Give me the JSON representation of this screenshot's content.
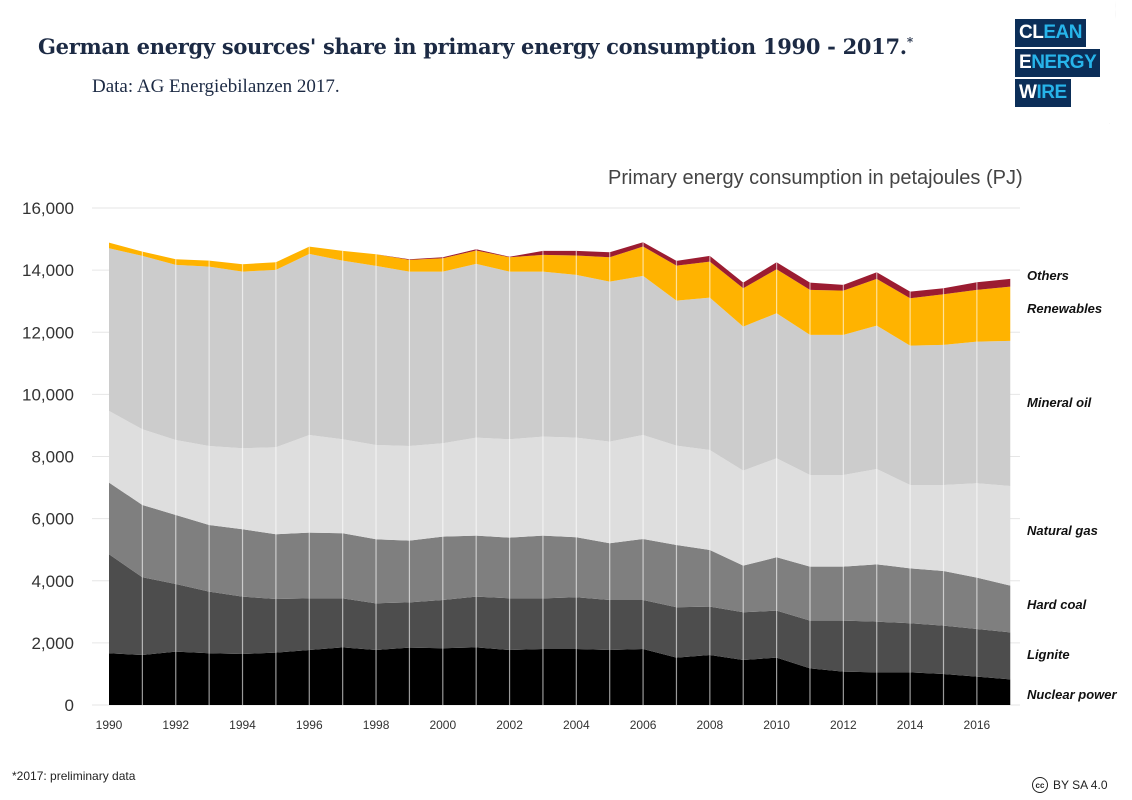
{
  "header": {
    "title": "German energy sources' share in primary energy consumption 1990 - 2017.",
    "title_mark": "*",
    "subtitle": "Data: AG Energiebilanzen 2017."
  },
  "logo": {
    "line1_a": "CL",
    "line1_b": "EAN",
    "line2_a": "E",
    "line2_b": "NERGY",
    "line3_a": "W",
    "line3_b": "IRE"
  },
  "footer": {
    "footnote": "*2017: preliminary data",
    "license": "BY SA 4.0",
    "license_icon_text": "cc"
  },
  "chart_data": {
    "type": "area",
    "stacked": true,
    "title": "Primary energy consumption in petajoules (PJ)",
    "xlabel": "",
    "ylabel": "",
    "ylim": [
      0,
      16000
    ],
    "yticks": [
      "0",
      "2,000",
      "4,000",
      "6,000",
      "8,000",
      "10,000",
      "12,000",
      "14,000",
      "16,000"
    ],
    "ytick_values": [
      0,
      2000,
      4000,
      6000,
      8000,
      10000,
      12000,
      14000,
      16000
    ],
    "xticks": [
      "1990",
      "1992",
      "1994",
      "1996",
      "1998",
      "2000",
      "2002",
      "2004",
      "2006",
      "2008",
      "2010",
      "2012",
      "2014",
      "2016"
    ],
    "grid": true,
    "legend_placement": "right",
    "x": [
      1990,
      1991,
      1992,
      1993,
      1994,
      1995,
      1996,
      1997,
      1998,
      1999,
      2000,
      2001,
      2002,
      2003,
      2004,
      2005,
      2006,
      2007,
      2008,
      2009,
      2010,
      2011,
      2012,
      2013,
      2014,
      2015,
      2016,
      2017
    ],
    "series": [
      {
        "name": "Nuclear power",
        "color": "#000000",
        "values": [
          1664,
          1610,
          1718,
          1664,
          1643,
          1686,
          1771,
          1857,
          1771,
          1846,
          1825,
          1857,
          1771,
          1803,
          1803,
          1771,
          1803,
          1524,
          1610,
          1449,
          1524,
          1181,
          1073,
          1052,
          1052,
          998,
          912,
          826
        ]
      },
      {
        "name": "Lignite",
        "color": "#4d4d4d",
        "values": [
          3188,
          2501,
          2178,
          1985,
          1845,
          1727,
          1663,
          1577,
          1502,
          1459,
          1556,
          1631,
          1663,
          1631,
          1664,
          1610,
          1578,
          1621,
          1557,
          1535,
          1513,
          1535,
          1643,
          1631,
          1578,
          1556,
          1535,
          1514
        ]
      },
      {
        "name": "Hard coal",
        "color": "#7f7f7f",
        "values": [
          2307,
          2329,
          2222,
          2147,
          2169,
          2083,
          2116,
          2094,
          2062,
          1986,
          2039,
          1965,
          1954,
          2019,
          1932,
          1825,
          1964,
          2007,
          1824,
          1502,
          1718,
          1738,
          1738,
          1846,
          1770,
          1761,
          1653,
          1502
        ]
      },
      {
        "name": "Natural gas",
        "color": "#dedede",
        "values": [
          2308,
          2437,
          2415,
          2544,
          2608,
          2801,
          3144,
          3027,
          3037,
          3049,
          3006,
          3155,
          3167,
          3187,
          3209,
          3273,
          3349,
          3199,
          3220,
          3059,
          3188,
          2952,
          2952,
          3070,
          2684,
          2769,
          3038,
          3210
        ]
      },
      {
        "name": "Mineral oil",
        "color": "#cccccc",
        "values": [
          5238,
          5581,
          5635,
          5774,
          5688,
          5710,
          5828,
          5752,
          5764,
          5613,
          5527,
          5592,
          5398,
          5313,
          5238,
          5152,
          5120,
          4668,
          4905,
          4637,
          4669,
          4508,
          4508,
          4615,
          4486,
          4508,
          4561,
          4669
        ]
      },
      {
        "name": "Renewables",
        "color": "#ffb300",
        "values": [
          181,
          139,
          183,
          193,
          237,
          247,
          236,
          312,
          376,
          376,
          430,
          430,
          462,
          537,
          623,
          784,
          945,
          1127,
          1159,
          1235,
          1417,
          1449,
          1428,
          1503,
          1525,
          1632,
          1664,
          1749
        ]
      },
      {
        "name": "Others",
        "color": "#9b1c31",
        "values": [
          0,
          0,
          0,
          0,
          0,
          0,
          0,
          0,
          0,
          20,
          30,
          43,
          15,
          129,
          150,
          161,
          139,
          151,
          183,
          182,
          225,
          236,
          182,
          215,
          214,
          193,
          247,
          247
        ]
      }
    ]
  }
}
